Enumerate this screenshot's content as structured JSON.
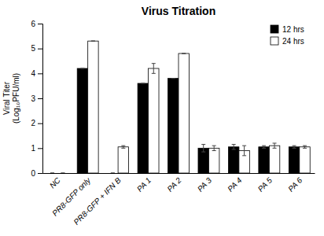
{
  "chart_data": {
    "type": "bar",
    "title": "Virus Titration",
    "ylabel": [
      "Viral Titer",
      "(Log₁₀PFU/ml)"
    ],
    "categories": [
      "NC",
      "PR8-GFP only",
      "PR8-GFP + IFN B",
      "PA 1",
      "PA 2",
      "PA 3",
      "PA 4",
      "PA 5",
      "PA 6"
    ],
    "series": [
      {
        "name": "12 hrs",
        "color": "#000000",
        "values": [
          0,
          4.2,
          0,
          3.6,
          3.8,
          1.0,
          1.05,
          1.05,
          1.05
        ],
        "errors": [
          0,
          0,
          0,
          0,
          0,
          0.15,
          0.1,
          0.05,
          0.05
        ]
      },
      {
        "name": "24 hrs",
        "color": "#ffffff",
        "values": [
          0,
          5.3,
          1.05,
          4.2,
          4.8,
          1.0,
          0.9,
          1.1,
          1.05
        ],
        "errors": [
          0,
          0,
          0.05,
          0.2,
          0,
          0.1,
          0.2,
          0.1,
          0.05
        ]
      }
    ],
    "ylim": [
      0,
      6
    ],
    "yticks": [
      0,
      1,
      2,
      3,
      4,
      5,
      6
    ],
    "grid": false,
    "legend": "upper right"
  }
}
